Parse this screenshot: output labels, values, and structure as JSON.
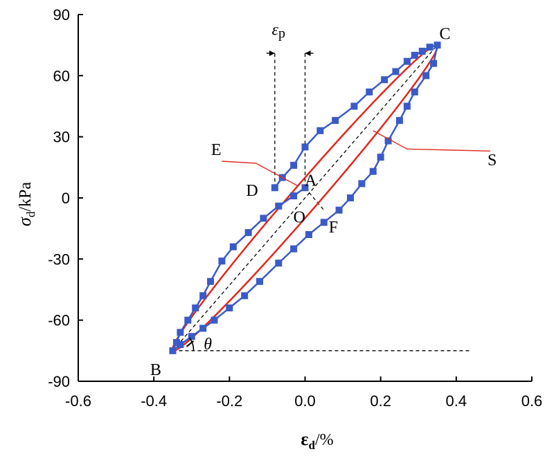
{
  "chart_data": {
    "type": "line",
    "xlabel": {
      "main": "ε",
      "sub": "d",
      "unit": "/%"
    },
    "ylabel": {
      "main": "σ",
      "sub": "d",
      "unit": "/kPa"
    },
    "xlim": [
      -0.6,
      0.6
    ],
    "ylim": [
      -90,
      90
    ],
    "xticks": [
      -0.6,
      -0.4,
      -0.2,
      0.0,
      0.2,
      0.4,
      0.6
    ],
    "xtick_labels": [
      "-0.6",
      "-0.4",
      "-0.2",
      "0.0",
      "0.2",
      "0.4",
      "0.6"
    ],
    "yticks": [
      -90,
      -60,
      -30,
      0,
      30,
      60,
      90
    ],
    "ytick_labels": [
      "-90",
      "-60",
      "-30",
      "0",
      "30",
      "60",
      "90"
    ],
    "grid": false,
    "series": [
      {
        "color": "#3a5bc7",
        "marker": "square",
        "points": [
          [
            -0.08,
            5
          ],
          [
            -0.06,
            10
          ],
          [
            -0.03,
            16
          ],
          [
            0.0,
            25
          ],
          [
            0.04,
            33
          ],
          [
            0.08,
            38
          ],
          [
            0.13,
            45
          ],
          [
            0.17,
            52
          ],
          [
            0.21,
            58
          ],
          [
            0.24,
            62
          ],
          [
            0.27,
            67
          ],
          [
            0.29,
            70
          ],
          [
            0.31,
            72
          ],
          [
            0.33,
            74
          ],
          [
            0.35,
            75
          ],
          [
            0.34,
            66
          ],
          [
            0.32,
            60
          ],
          [
            0.29,
            52
          ],
          [
            0.27,
            45
          ],
          [
            0.25,
            38
          ],
          [
            0.22,
            28
          ],
          [
            0.2,
            20
          ],
          [
            0.18,
            13
          ],
          [
            0.15,
            7
          ],
          [
            0.12,
            0
          ],
          [
            0.09,
            -6
          ],
          [
            0.05,
            -12
          ],
          [
            0.01,
            -18
          ],
          [
            -0.03,
            -25
          ],
          [
            -0.07,
            -32
          ],
          [
            -0.12,
            -41
          ],
          [
            -0.16,
            -48
          ],
          [
            -0.2,
            -54
          ],
          [
            -0.24,
            -60
          ],
          [
            -0.27,
            -64
          ],
          [
            -0.3,
            -68
          ],
          [
            -0.33,
            -72
          ],
          [
            -0.35,
            -75
          ],
          [
            -0.34,
            -71
          ],
          [
            -0.33,
            -66
          ],
          [
            -0.31,
            -60
          ],
          [
            -0.29,
            -54
          ],
          [
            -0.27,
            -48
          ],
          [
            -0.25,
            -41
          ],
          [
            -0.22,
            -31
          ],
          [
            -0.19,
            -24
          ],
          [
            -0.15,
            -17
          ],
          [
            -0.11,
            -10
          ],
          [
            -0.07,
            -4
          ],
          [
            -0.03,
            1
          ],
          [
            0.0,
            5
          ]
        ]
      }
    ],
    "ellipse": {
      "color": "#e0281e",
      "center": [
        0.0,
        0.0
      ],
      "vertex_c": [
        0.35,
        75
      ],
      "semi_minor_point": [
        0.0,
        10
      ],
      "closed": true
    },
    "reference_lines": [
      {
        "from": [
          -0.35,
          -75
        ],
        "to": [
          0.35,
          75
        ],
        "style": "dashed"
      },
      {
        "from": [
          -0.35,
          -75
        ],
        "to": [
          0.44,
          -75
        ],
        "style": "dashed"
      },
      {
        "from": [
          -0.08,
          5
        ],
        "to": [
          -0.08,
          71
        ],
        "style": "dashed"
      },
      {
        "from": [
          0.0,
          5
        ],
        "to": [
          0.0,
          71
        ],
        "style": "dashed"
      },
      {
        "from": [
          0.0,
          5
        ],
        "to": [
          0.05,
          -6
        ],
        "style": "dashed"
      }
    ],
    "annotations": {
      "points": [
        {
          "text": "C",
          "at": [
            0.37,
            78
          ]
        },
        {
          "text": "A",
          "at": [
            0.015,
            6
          ]
        },
        {
          "text": "D",
          "at": [
            -0.14,
            1
          ]
        },
        {
          "text": "O",
          "at": [
            -0.015,
            -12
          ]
        },
        {
          "text": "F",
          "at": [
            0.075,
            -17
          ]
        },
        {
          "text": "E",
          "at": [
            -0.235,
            21
          ]
        },
        {
          "text": "S",
          "at": [
            0.495,
            16
          ]
        },
        {
          "text": "B",
          "at": [
            -0.395,
            -87
          ]
        }
      ],
      "theta": {
        "text": "θ",
        "at": [
          -0.29,
          -71
        ]
      },
      "epsilon_p": {
        "main": "ε",
        "sub": "p",
        "at": [
          -0.07,
          80
        ]
      },
      "leaders": [
        {
          "from": [
            -0.22,
            18
          ],
          "to": [
            -0.13,
            17
          ],
          "to2": [
            -0.02,
            6
          ]
        },
        {
          "from": [
            0.18,
            33
          ],
          "to": [
            0.27,
            24
          ],
          "to2": [
            0.49,
            23
          ]
        }
      ],
      "bracket_arrows": {
        "y": 71,
        "left_x": -0.08,
        "right_x": 0.0,
        "arm": 0.022
      }
    }
  }
}
